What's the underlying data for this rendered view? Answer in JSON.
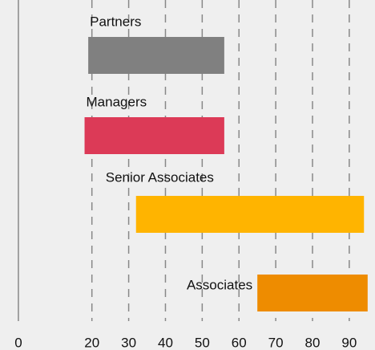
{
  "chart_data": {
    "type": "range-bar",
    "categories": [
      "Partners",
      "Managers",
      "Senior Associates",
      "Associates"
    ],
    "start": [
      19,
      18,
      32,
      65
    ],
    "end": [
      56,
      56,
      94,
      95
    ],
    "colors": [
      "#808080",
      "#dc3a57",
      "#ffb400",
      "#ee8c00"
    ],
    "xlim": [
      -5,
      97
    ],
    "xticks": [
      0,
      20,
      30,
      40,
      50,
      60,
      70,
      80,
      90
    ],
    "grid": true
  }
}
